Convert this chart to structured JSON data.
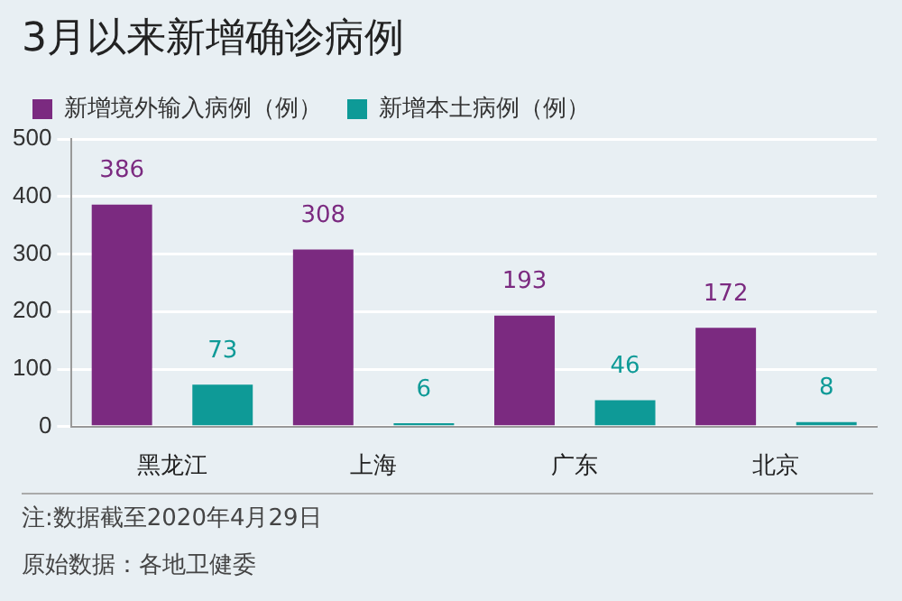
{
  "chart_data": {
    "type": "bar",
    "title": "3月以来新增确诊病例",
    "categories": [
      "黑龙江",
      "上海",
      "广东",
      "北京"
    ],
    "series": [
      {
        "name": "新增境外输入病例（例）",
        "color": "#7b2a80",
        "values": [
          386,
          308,
          193,
          172
        ]
      },
      {
        "name": "新增本土病例（例）",
        "color": "#0e9a97",
        "values": [
          73,
          6,
          46,
          8
        ]
      }
    ],
    "ylim": [
      0,
      500
    ],
    "yticks": [
      0,
      100,
      200,
      300,
      400,
      500
    ],
    "grid": "y",
    "legend": "top left",
    "data_labels": true,
    "annotations": [
      "注:数据截至2020年4月29日",
      "原始数据：各地卫健委"
    ]
  }
}
